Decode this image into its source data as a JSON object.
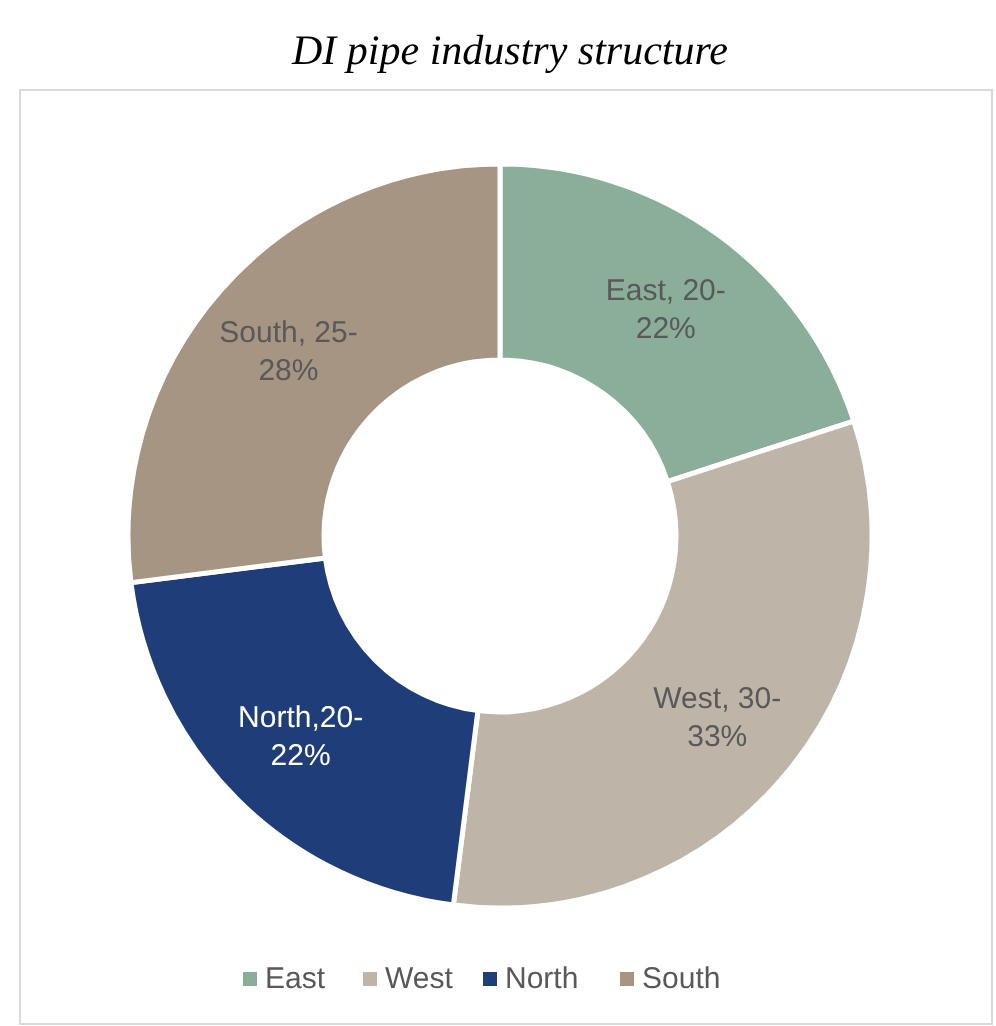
{
  "chart_data": {
    "type": "donut",
    "title": "DI pipe industry structure",
    "categories": [
      "East",
      "West",
      "North",
      "South"
    ],
    "values": [
      20,
      32,
      21,
      27
    ],
    "colors": [
      "#8aae9a",
      "#beb5a8",
      "#1f3d78",
      "#a59582"
    ],
    "annotations": [
      {
        "text": "East, 20-22%",
        "x": "East"
      },
      {
        "text": "West, 30-33%",
        "x": "West"
      },
      {
        "text": "North,20-22%",
        "x": "North"
      },
      {
        "text": "South, 25-28%",
        "x": "South"
      }
    ],
    "legend": "bottom"
  }
}
